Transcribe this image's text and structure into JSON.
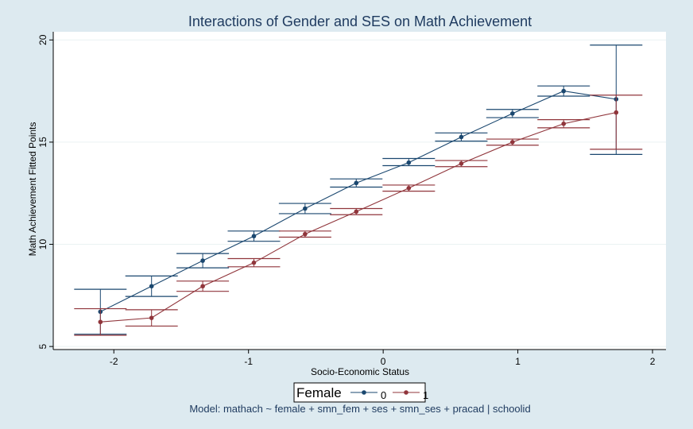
{
  "chart_data": {
    "type": "line",
    "title": "Interactions of Gender and SES on Math Achievement",
    "xlabel": "Socio-Economic Status",
    "ylabel": "Math Achievement Fitted Points",
    "xlim": [
      -2.45,
      2.1
    ],
    "ylim": [
      4.85,
      20.4
    ],
    "xticks": [
      -2,
      -1,
      0,
      1,
      2
    ],
    "yticks": [
      5,
      10,
      15,
      20
    ],
    "grid": true,
    "legend": {
      "title": "Female",
      "placement": "bottom-center",
      "entries": [
        "0",
        "1"
      ]
    },
    "note": "Model: mathach ~ female + smn_fem + ses + smn_ses + pracad | schoolid",
    "series": [
      {
        "name": "0",
        "color": "#1a476f",
        "x": [
          -2.1,
          -1.72,
          -1.34,
          -0.96,
          -0.58,
          -0.2,
          0.19,
          0.58,
          0.96,
          1.34,
          1.73
        ],
        "y": [
          6.7,
          7.95,
          9.2,
          10.4,
          11.75,
          13.0,
          14.0,
          15.25,
          16.4,
          17.5,
          17.1
        ],
        "ci_lo": [
          5.6,
          7.45,
          8.85,
          10.15,
          11.5,
          12.8,
          13.85,
          15.05,
          16.2,
          17.25,
          14.4
        ],
        "ci_hi": [
          7.8,
          8.45,
          9.55,
          10.65,
          12.0,
          13.2,
          14.2,
          15.45,
          16.6,
          17.75,
          19.75
        ]
      },
      {
        "name": "1",
        "color": "#90353b",
        "x": [
          -2.1,
          -1.72,
          -1.34,
          -0.96,
          -0.58,
          -0.2,
          0.19,
          0.58,
          0.96,
          1.34,
          1.73
        ],
        "y": [
          6.2,
          6.4,
          7.95,
          9.1,
          10.5,
          11.6,
          12.75,
          13.95,
          15.0,
          15.9,
          16.45
        ],
        "ci_lo": [
          5.55,
          6.0,
          7.7,
          8.9,
          10.35,
          11.45,
          12.6,
          13.8,
          14.85,
          15.7,
          14.65
        ],
        "ci_hi": [
          6.85,
          6.8,
          8.2,
          9.3,
          10.65,
          11.75,
          12.9,
          14.1,
          15.15,
          16.1,
          17.3
        ]
      }
    ]
  }
}
